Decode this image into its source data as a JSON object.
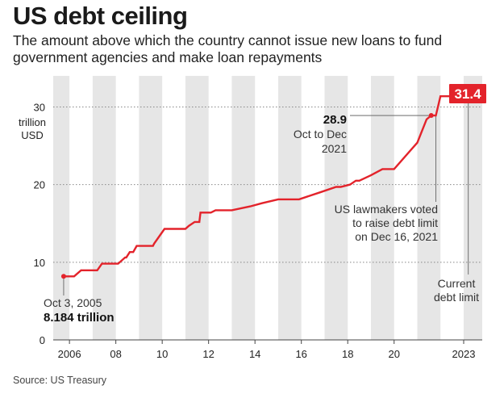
{
  "title": "US debt ceiling",
  "subtitle": "The amount above which the country cannot issue new loans to fund government agencies and make loan repayments",
  "source": "Source: US Treasury",
  "colors": {
    "line": "#e3232b",
    "band": "#e6e6e6",
    "callout_bg": "#e3232b"
  },
  "chart_data": {
    "type": "line",
    "title": "US debt ceiling",
    "ylabel": "trillion USD",
    "ylabel_lines": [
      "trillion",
      "USD"
    ],
    "xlim": [
      2005.3,
      2023.8
    ],
    "ylim": [
      0,
      34
    ],
    "y_ticks": [
      0,
      10,
      20,
      30
    ],
    "x_tick_labels": [
      {
        "year": 2006,
        "label": "2006"
      },
      {
        "year": 2008,
        "label": "08"
      },
      {
        "year": 2010,
        "label": "10"
      },
      {
        "year": 2012,
        "label": "12"
      },
      {
        "year": 2014,
        "label": "14"
      },
      {
        "year": 2016,
        "label": "16"
      },
      {
        "year": 2018,
        "label": "18"
      },
      {
        "year": 2020,
        "label": "20"
      },
      {
        "year": 2023,
        "label": "2023"
      }
    ],
    "grid": "horizontal dotted",
    "series": [
      {
        "x": [
          2005.75,
          2006.0,
          2006.2,
          2006.5,
          2007.2,
          2007.4,
          2008.0,
          2008.1,
          2008.4,
          2008.45,
          2008.6,
          2008.75,
          2008.9,
          2009.6,
          2009.65,
          2010.1,
          2010.2,
          2011.0,
          2011.15,
          2011.4,
          2011.5,
          2011.6,
          2011.65,
          2011.7,
          2012.1,
          2012.3,
          2013.0,
          2013.8,
          2014.3,
          2015.0,
          2015.9,
          2016.8,
          2017.5,
          2017.7,
          2018.1,
          2018.35,
          2018.5,
          2019.0,
          2019.5,
          2020.0,
          2021.0,
          2021.4,
          2021.6,
          2021.8,
          2022.0,
          2023.2
        ],
        "y": [
          8.184,
          8.184,
          8.184,
          8.965,
          8.965,
          9.815,
          9.815,
          9.815,
          10.615,
          10.615,
          11.315,
          11.315,
          12.104,
          12.104,
          12.394,
          14.294,
          14.294,
          14.294,
          14.694,
          15.194,
          15.194,
          15.194,
          16.394,
          16.394,
          16.394,
          16.7,
          16.7,
          17.2,
          17.6,
          18.1,
          18.1,
          19.0,
          19.7,
          19.7,
          20.0,
          20.5,
          20.5,
          21.2,
          22.0,
          22.0,
          25.4,
          28.401,
          28.9,
          28.9,
          31.381,
          31.381
        ]
      }
    ],
    "annotations": {
      "start": {
        "date": "Oct 3, 2005",
        "value": "8.184 trillion"
      },
      "mid": {
        "value": "28.9",
        "lines": [
          "Oct to Dec",
          "2021"
        ]
      },
      "vote": {
        "lines": [
          "US lawmakers voted",
          "to raise debt limit",
          "on Dec 16, 2021"
        ]
      },
      "current": {
        "value": "31.4",
        "lines": [
          "Current",
          "debt limit"
        ]
      }
    }
  }
}
